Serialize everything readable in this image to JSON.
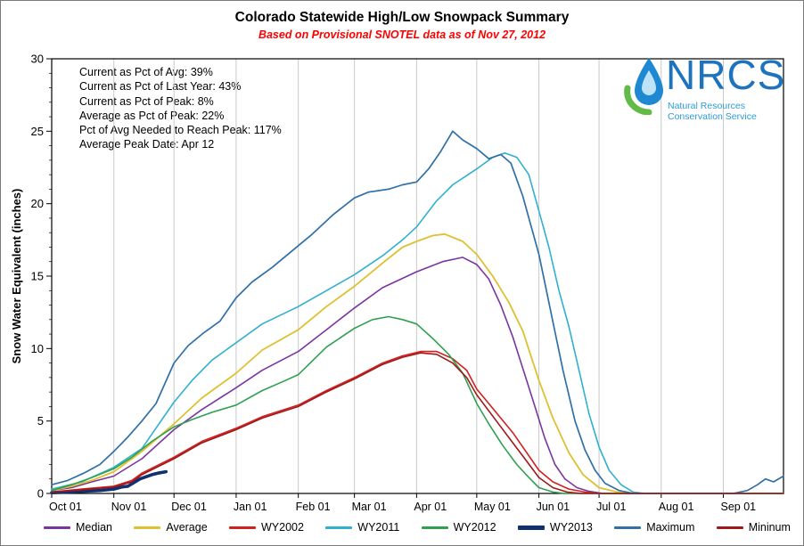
{
  "title": "Colorado Statewide High/Low Snowpack Summary",
  "subtitle": "Based on Provisional SNOTEL data as of Nov 27, 2012",
  "stats": {
    "lines": [
      "Current as Pct of Avg: 39%",
      "Current as Pct of Last Year: 43%",
      "Current as Pct of Peak: 8%",
      "Average as Pct of Peak: 22%",
      "Pct of Avg Needed to Reach Peak: 117%",
      "Average Peak Date: Apr 12"
    ]
  },
  "logo": {
    "acronym": "NRCS",
    "org_line1": "Natural Resources",
    "org_line2": "Conservation Service",
    "drop_color": "#1e88d2",
    "drop_inner_color": "#bee3f7",
    "swoosh_color": "#62bb46",
    "text_color": "#1e73be"
  },
  "chart_data": {
    "type": "line",
    "title": "Colorado Statewide High/Low Snowpack Summary",
    "xlabel": "",
    "ylabel": "Snow Water Equivalent (inches)",
    "ylim": [
      0,
      30
    ],
    "y_ticks": [
      0,
      5,
      10,
      15,
      20,
      25,
      30
    ],
    "x_total_days": 365,
    "grid": "vertical-only",
    "grid_color": "#c9c9c9",
    "legend_position": "bottom",
    "x_ticks": [
      {
        "day": 0,
        "label": "Oct 01"
      },
      {
        "day": 31,
        "label": "Nov 01"
      },
      {
        "day": 61,
        "label": "Dec 01"
      },
      {
        "day": 92,
        "label": "Jan 01"
      },
      {
        "day": 123,
        "label": "Feb 01"
      },
      {
        "day": 151,
        "label": "Mar 01"
      },
      {
        "day": 182,
        "label": "Apr 01"
      },
      {
        "day": 212,
        "label": "May 01"
      },
      {
        "day": 243,
        "label": "Jun 01"
      },
      {
        "day": 273,
        "label": "Jul 01"
      },
      {
        "day": 304,
        "label": "Aug 01"
      },
      {
        "day": 335,
        "label": "Sep 01"
      }
    ],
    "series": [
      {
        "name": "Median",
        "color": "#7b35a0",
        "width": 1.6,
        "points": [
          [
            0,
            0.2
          ],
          [
            10,
            0.4
          ],
          [
            20,
            0.8
          ],
          [
            31,
            1.2
          ],
          [
            45,
            2.4
          ],
          [
            61,
            4.4
          ],
          [
            75,
            5.8
          ],
          [
            92,
            7.3
          ],
          [
            105,
            8.5
          ],
          [
            123,
            9.8
          ],
          [
            137,
            11.3
          ],
          [
            151,
            12.8
          ],
          [
            165,
            14.2
          ],
          [
            182,
            15.3
          ],
          [
            195,
            16.0
          ],
          [
            205,
            16.3
          ],
          [
            212,
            15.8
          ],
          [
            218,
            14.8
          ],
          [
            224,
            13.0
          ],
          [
            230,
            10.8
          ],
          [
            236,
            8.2
          ],
          [
            241,
            6.0
          ],
          [
            246,
            3.8
          ],
          [
            251,
            2.0
          ],
          [
            256,
            1.0
          ],
          [
            262,
            0.4
          ],
          [
            268,
            0.15
          ],
          [
            275,
            0
          ],
          [
            365,
            0
          ]
        ]
      },
      {
        "name": "Average",
        "color": "#dfc030",
        "width": 1.8,
        "points": [
          [
            0,
            0.2
          ],
          [
            10,
            0.5
          ],
          [
            20,
            0.9
          ],
          [
            31,
            1.5
          ],
          [
            45,
            2.9
          ],
          [
            61,
            4.8
          ],
          [
            75,
            6.6
          ],
          [
            92,
            8.3
          ],
          [
            105,
            9.9
          ],
          [
            123,
            11.3
          ],
          [
            137,
            12.9
          ],
          [
            151,
            14.3
          ],
          [
            165,
            15.9
          ],
          [
            175,
            17.0
          ],
          [
            182,
            17.4
          ],
          [
            190,
            17.8
          ],
          [
            196,
            17.9
          ],
          [
            205,
            17.4
          ],
          [
            212,
            16.5
          ],
          [
            220,
            15.0
          ],
          [
            228,
            13.2
          ],
          [
            235,
            11.2
          ],
          [
            243,
            7.8
          ],
          [
            250,
            5.2
          ],
          [
            258,
            2.8
          ],
          [
            265,
            1.3
          ],
          [
            273,
            0.4
          ],
          [
            282,
            0.1
          ],
          [
            290,
            0
          ],
          [
            365,
            0
          ]
        ]
      },
      {
        "name": "WY2002",
        "color": "#d02020",
        "width": 1.6,
        "points": [
          [
            0,
            0.1
          ],
          [
            15,
            0.3
          ],
          [
            31,
            0.5
          ],
          [
            40,
            0.9
          ],
          [
            45,
            1.4
          ],
          [
            61,
            2.5
          ],
          [
            75,
            3.6
          ],
          [
            92,
            4.5
          ],
          [
            105,
            5.3
          ],
          [
            123,
            6.1
          ],
          [
            137,
            7.1
          ],
          [
            151,
            8.0
          ],
          [
            165,
            9.0
          ],
          [
            175,
            9.5
          ],
          [
            184,
            9.8
          ],
          [
            192,
            9.8
          ],
          [
            200,
            9.3
          ],
          [
            207,
            8.5
          ],
          [
            212,
            7.2
          ],
          [
            218,
            6.2
          ],
          [
            224,
            5.2
          ],
          [
            230,
            4.2
          ],
          [
            236,
            3.0
          ],
          [
            243,
            1.6
          ],
          [
            250,
            0.8
          ],
          [
            258,
            0.3
          ],
          [
            266,
            0.1
          ],
          [
            273,
            0
          ],
          [
            365,
            0
          ]
        ]
      },
      {
        "name": "WY2011",
        "color": "#30b0d0",
        "width": 1.6,
        "points": [
          [
            0,
            0.3
          ],
          [
            15,
            0.8
          ],
          [
            31,
            1.8
          ],
          [
            45,
            3.1
          ],
          [
            61,
            6.3
          ],
          [
            70,
            7.8
          ],
          [
            80,
            9.2
          ],
          [
            92,
            10.4
          ],
          [
            105,
            11.7
          ],
          [
            123,
            12.9
          ],
          [
            137,
            14.0
          ],
          [
            151,
            15.1
          ],
          [
            165,
            16.4
          ],
          [
            175,
            17.5
          ],
          [
            182,
            18.4
          ],
          [
            192,
            20.2
          ],
          [
            200,
            21.3
          ],
          [
            212,
            22.4
          ],
          [
            220,
            23.2
          ],
          [
            226,
            23.5
          ],
          [
            232,
            23.2
          ],
          [
            238,
            22.0
          ],
          [
            243,
            19.5
          ],
          [
            248,
            17.0
          ],
          [
            253,
            14.0
          ],
          [
            258,
            11.5
          ],
          [
            263,
            8.5
          ],
          [
            268,
            5.5
          ],
          [
            273,
            3.2
          ],
          [
            278,
            1.6
          ],
          [
            284,
            0.6
          ],
          [
            290,
            0.1
          ],
          [
            296,
            0
          ],
          [
            365,
            0
          ]
        ]
      },
      {
        "name": "WY2012",
        "color": "#30a050",
        "width": 1.6,
        "points": [
          [
            0,
            0.2
          ],
          [
            10,
            0.6
          ],
          [
            20,
            1.1
          ],
          [
            31,
            1.7
          ],
          [
            40,
            2.5
          ],
          [
            50,
            3.6
          ],
          [
            61,
            4.6
          ],
          [
            70,
            5.1
          ],
          [
            80,
            5.6
          ],
          [
            92,
            6.1
          ],
          [
            105,
            7.1
          ],
          [
            115,
            7.7
          ],
          [
            123,
            8.2
          ],
          [
            137,
            10.1
          ],
          [
            151,
            11.4
          ],
          [
            160,
            12.0
          ],
          [
            168,
            12.2
          ],
          [
            175,
            12.0
          ],
          [
            182,
            11.7
          ],
          [
            190,
            10.7
          ],
          [
            198,
            9.6
          ],
          [
            205,
            8.3
          ],
          [
            212,
            6.2
          ],
          [
            218,
            4.8
          ],
          [
            225,
            3.3
          ],
          [
            232,
            2.0
          ],
          [
            238,
            1.1
          ],
          [
            243,
            0.4
          ],
          [
            250,
            0.1
          ],
          [
            256,
            0
          ],
          [
            365,
            0
          ]
        ]
      },
      {
        "name": "WY2013",
        "color": "#10306e",
        "width": 3.6,
        "points": [
          [
            0,
            0.05
          ],
          [
            8,
            0.1
          ],
          [
            16,
            0.15
          ],
          [
            24,
            0.2
          ],
          [
            31,
            0.3
          ],
          [
            35,
            0.45
          ],
          [
            38,
            0.5
          ],
          [
            41,
            0.75
          ],
          [
            44,
            1.0
          ],
          [
            47,
            1.15
          ],
          [
            50,
            1.3
          ],
          [
            53,
            1.4
          ],
          [
            57,
            1.5
          ]
        ]
      },
      {
        "name": "Maximum",
        "color": "#3070a8",
        "width": 1.7,
        "points": [
          [
            0,
            0.6
          ],
          [
            8,
            0.9
          ],
          [
            16,
            1.4
          ],
          [
            24,
            2.0
          ],
          [
            31,
            2.9
          ],
          [
            38,
            3.9
          ],
          [
            45,
            5.0
          ],
          [
            52,
            6.2
          ],
          [
            61,
            9.0
          ],
          [
            68,
            10.2
          ],
          [
            75,
            11.0
          ],
          [
            84,
            11.9
          ],
          [
            92,
            13.5
          ],
          [
            100,
            14.6
          ],
          [
            110,
            15.6
          ],
          [
            123,
            17.1
          ],
          [
            130,
            17.9
          ],
          [
            140,
            19.2
          ],
          [
            151,
            20.4
          ],
          [
            158,
            20.8
          ],
          [
            168,
            21.0
          ],
          [
            175,
            21.3
          ],
          [
            182,
            21.5
          ],
          [
            188,
            22.4
          ],
          [
            194,
            23.6
          ],
          [
            200,
            25.0
          ],
          [
            205,
            24.4
          ],
          [
            212,
            23.8
          ],
          [
            218,
            23.1
          ],
          [
            224,
            23.4
          ],
          [
            229,
            22.8
          ],
          [
            235,
            20.5
          ],
          [
            243,
            16.5
          ],
          [
            249,
            12.5
          ],
          [
            255,
            8.5
          ],
          [
            261,
            5.0
          ],
          [
            266,
            3.0
          ],
          [
            271,
            1.6
          ],
          [
            276,
            0.7
          ],
          [
            283,
            0.2
          ],
          [
            290,
            0
          ],
          [
            340,
            0
          ],
          [
            347,
            0.2
          ],
          [
            352,
            0.6
          ],
          [
            356,
            1.0
          ],
          [
            360,
            0.8
          ],
          [
            365,
            1.2
          ]
        ]
      },
      {
        "name": "Mininum",
        "color": "#a01818",
        "width": 1.6,
        "points": [
          [
            0,
            0.1
          ],
          [
            15,
            0.25
          ],
          [
            31,
            0.45
          ],
          [
            40,
            0.8
          ],
          [
            45,
            1.3
          ],
          [
            61,
            2.4
          ],
          [
            75,
            3.5
          ],
          [
            92,
            4.4
          ],
          [
            105,
            5.2
          ],
          [
            123,
            6.0
          ],
          [
            137,
            7.0
          ],
          [
            151,
            7.9
          ],
          [
            165,
            8.9
          ],
          [
            175,
            9.4
          ],
          [
            184,
            9.7
          ],
          [
            192,
            9.6
          ],
          [
            200,
            9.0
          ],
          [
            207,
            8.0
          ],
          [
            212,
            6.8
          ],
          [
            218,
            5.7
          ],
          [
            224,
            4.6
          ],
          [
            230,
            3.5
          ],
          [
            236,
            2.4
          ],
          [
            243,
            1.1
          ],
          [
            250,
            0.4
          ],
          [
            257,
            0.1
          ],
          [
            264,
            0
          ],
          [
            365,
            0
          ]
        ]
      }
    ]
  }
}
